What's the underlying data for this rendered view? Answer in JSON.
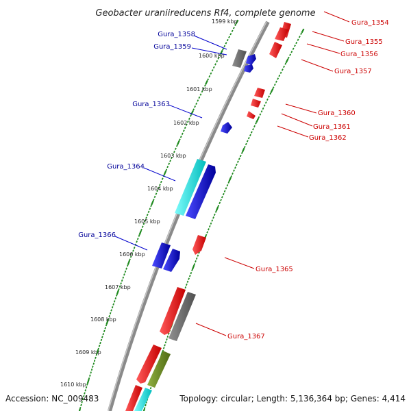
{
  "title": "Geobacter uraniireducens Rf4, complete genome",
  "footer": {
    "accession": "Accession: NC_009483",
    "summary": "Topology: circular; Length: 5,136,364 bp; Genes: 4,414"
  },
  "colors": {
    "backbone": "#8a8a8a",
    "tick": "#1f8a1f",
    "forward_gene": "#e31b1b",
    "reverse_gene": "#1b1bd9",
    "rna_gene": "#00e5e5",
    "pseudo_gene": "#6e6e6e",
    "other_gene": "#6e8a22",
    "forward_label": "#cc0000",
    "reverse_label": "#000099"
  },
  "ticks": [
    {
      "label": "1599 kbp"
    },
    {
      "label": "1600 kbp"
    },
    {
      "label": "1601 kbp"
    },
    {
      "label": "1602 kbp"
    },
    {
      "label": "1603 kbp"
    },
    {
      "label": "1604 kbp"
    },
    {
      "label": "1605 kbp"
    },
    {
      "label": "1606 kbp"
    },
    {
      "label": "1607 kbp"
    },
    {
      "label": "1608 kbp"
    },
    {
      "label": "1609 kbp"
    },
    {
      "label": "1610 kbp"
    }
  ],
  "reverse_labels": [
    {
      "name": "Gura_1358"
    },
    {
      "name": "Gura_1359"
    },
    {
      "name": "Gura_1363"
    },
    {
      "name": "Gura_1364"
    },
    {
      "name": "Gura_1366"
    }
  ],
  "forward_labels": [
    {
      "name": "Gura_1354"
    },
    {
      "name": "Gura_1355"
    },
    {
      "name": "Gura_1356"
    },
    {
      "name": "Gura_1357"
    },
    {
      "name": "Gura_1360"
    },
    {
      "name": "Gura_1361"
    },
    {
      "name": "Gura_1362"
    },
    {
      "name": "Gura_1365"
    },
    {
      "name": "Gura_1367"
    }
  ]
}
